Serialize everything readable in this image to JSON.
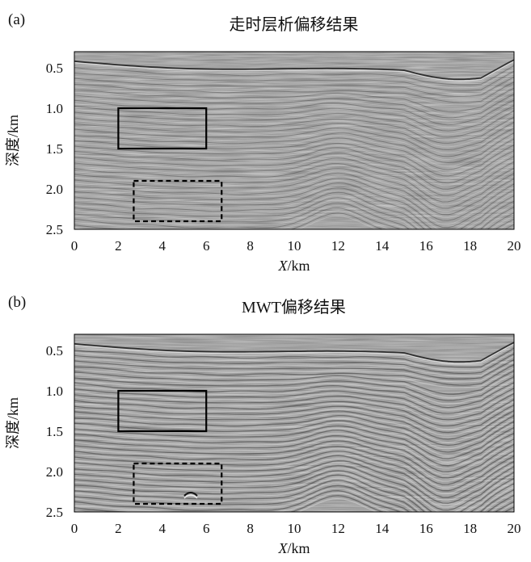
{
  "panels": [
    {
      "label": "(a)",
      "title": "走时层析偏移结果",
      "xlabel_var": "X",
      "xlabel_unit": "/km",
      "ylabel": "深度/km",
      "variant": "a"
    },
    {
      "label": "(b)",
      "title": "MWT偏移结果",
      "xlabel_var": "X",
      "xlabel_unit": "/km",
      "ylabel": "深度/km",
      "variant": "b"
    }
  ],
  "colors": {
    "image_gray": "#8f8f8f",
    "frame": "#000000"
  },
  "chart_data": [
    {
      "type": "heatmap",
      "title": "走时层析偏移结果",
      "xlabel": "X/km",
      "ylabel": "深度/km",
      "xlim": [
        0,
        20
      ],
      "ylim": [
        2.5,
        0.3
      ],
      "xticks": [
        "0",
        "2",
        "4",
        "6",
        "8",
        "10",
        "12",
        "14",
        "16",
        "18",
        "20"
      ],
      "yticks": [
        "0.5",
        "1.0",
        "1.5",
        "2.0",
        "2.5"
      ],
      "annotations": [
        {
          "style": "solid",
          "x": [
            2,
            6
          ],
          "y": [
            1.0,
            1.5
          ]
        },
        {
          "style": "dashed",
          "x": [
            2.7,
            6.7
          ],
          "y": [
            1.9,
            2.4
          ]
        }
      ]
    },
    {
      "type": "heatmap",
      "title": "MWT偏移结果",
      "xlabel": "X/km",
      "ylabel": "深度/km",
      "xlim": [
        0,
        20
      ],
      "ylim": [
        2.5,
        0.3
      ],
      "xticks": [
        "0",
        "2",
        "4",
        "6",
        "8",
        "10",
        "12",
        "14",
        "16",
        "18",
        "20"
      ],
      "yticks": [
        "0.5",
        "1.0",
        "1.5",
        "2.0",
        "2.5"
      ],
      "annotations": [
        {
          "style": "solid",
          "x": [
            2,
            6
          ],
          "y": [
            1.0,
            1.5
          ]
        },
        {
          "style": "dashed",
          "x": [
            2.7,
            6.7
          ],
          "y": [
            1.9,
            2.4
          ]
        }
      ]
    }
  ]
}
